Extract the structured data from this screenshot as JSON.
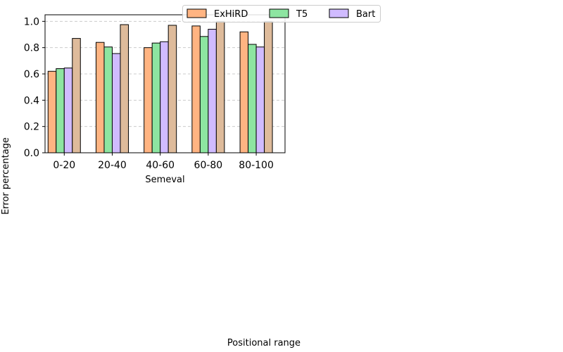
{
  "chart_data": {
    "type": "bar",
    "title": "",
    "subplot_label": "Semeval",
    "xlabel": "Positional range",
    "ylabel": "Error percentage",
    "categories": [
      "0-20",
      "20-40",
      "40-60",
      "60-80",
      "80-100"
    ],
    "ylim": [
      0,
      1.05
    ],
    "yticks": [
      "0.0",
      "0.2",
      "0.4",
      "0.6",
      "0.8",
      "1.0"
    ],
    "grid": true,
    "legend_placement": "top",
    "series": [
      {
        "name": "ExHiRD",
        "color": "#ffb482",
        "values": [
          0.62,
          0.84,
          0.8,
          0.965,
          0.92
        ]
      },
      {
        "name": "T5",
        "color": "#8de5a1",
        "values": [
          0.64,
          0.805,
          0.835,
          0.885,
          0.825
        ]
      },
      {
        "name": "Bart",
        "color": "#d0bbff",
        "values": [
          0.645,
          0.755,
          0.845,
          0.94,
          0.805
        ]
      },
      {
        "name": "",
        "color": "#debb9b",
        "values": [
          0.87,
          0.975,
          0.97,
          1.0,
          1.0
        ]
      }
    ]
  }
}
